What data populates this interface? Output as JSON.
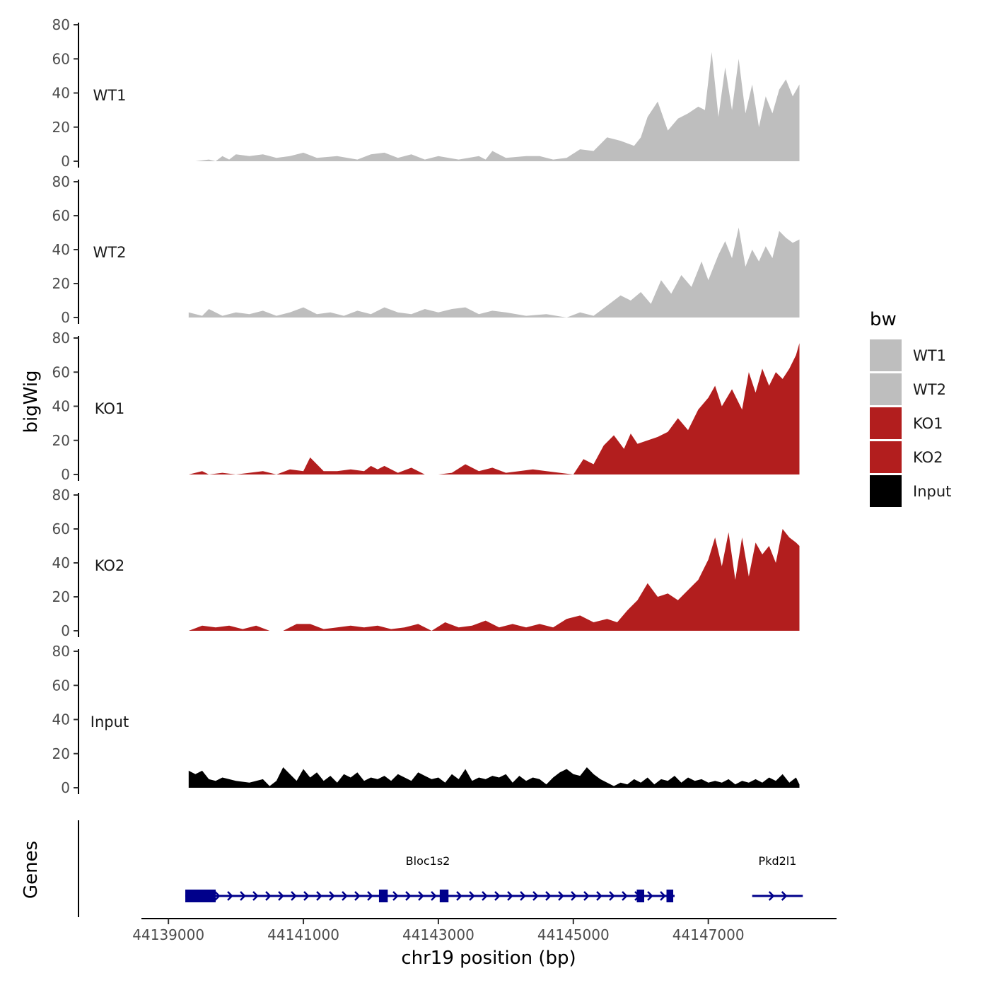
{
  "chart_data": {
    "type": "area",
    "y_axis_title": "bigWig",
    "x_axis_title": "chr19 position (bp)",
    "genes_axis_title": "Genes",
    "xlim": [
      44138600,
      44148900
    ],
    "x_ticks": [
      44139000,
      44141000,
      44143000,
      44145000,
      44147000
    ],
    "x_tick_labels": [
      "44139000",
      "44141000",
      "44143000",
      "44145000",
      "44147000"
    ],
    "ylim": [
      0,
      80
    ],
    "y_ticks": [
      0,
      20,
      40,
      60,
      80
    ],
    "y_tick_labels": [
      "0",
      "20",
      "40",
      "60",
      "80"
    ],
    "legend": {
      "title": "bw",
      "position": "right",
      "entries": [
        {
          "label": "WT1",
          "color": "#bebebe"
        },
        {
          "label": "WT2",
          "color": "#bebebe"
        },
        {
          "label": "KO1",
          "color": "#b21e1e"
        },
        {
          "label": "KO2",
          "color": "#b21e1e"
        },
        {
          "label": "Input",
          "color": "#000000"
        }
      ]
    },
    "series": [
      {
        "name": "WT1",
        "color": "#bebebe",
        "x": [
          44139400,
          44139600,
          44139700,
          44139800,
          44139900,
          44140000,
          44140200,
          44140400,
          44140600,
          44140800,
          44141000,
          44141200,
          44141500,
          44141800,
          44142000,
          44142200,
          44142400,
          44142600,
          44142800,
          44143000,
          44143300,
          44143600,
          44143700,
          44143800,
          44144000,
          44144300,
          44144500,
          44144700,
          44144900,
          44145100,
          44145300,
          44145500,
          44145700,
          44145900,
          44146000,
          44146100,
          44146250,
          44146400,
          44146550,
          44146700,
          44146850,
          44146950,
          44147050,
          44147150,
          44147250,
          44147350,
          44147450,
          44147550,
          44147650,
          44147750,
          44147850,
          44147950,
          44148050,
          44148150,
          44148250,
          44148350
        ],
        "values": [
          0,
          1,
          0,
          3,
          1,
          4,
          3,
          4,
          2,
          3,
          5,
          2,
          3,
          1,
          4,
          5,
          2,
          4,
          1,
          3,
          1,
          3,
          1,
          6,
          2,
          3,
          3,
          1,
          2,
          7,
          6,
          14,
          12,
          9,
          14,
          26,
          35,
          18,
          25,
          28,
          32,
          30,
          64,
          26,
          55,
          30,
          60,
          28,
          45,
          20,
          38,
          28,
          42,
          48,
          38,
          45
        ]
      },
      {
        "name": "WT2",
        "color": "#bebebe",
        "x": [
          44139300,
          44139500,
          44139600,
          44139800,
          44140000,
          44140200,
          44140400,
          44140600,
          44140800,
          44141000,
          44141200,
          44141400,
          44141600,
          44141800,
          44142000,
          44142200,
          44142400,
          44142600,
          44142800,
          44143000,
          44143200,
          44143400,
          44143600,
          44143800,
          44144000,
          44144300,
          44144600,
          44144900,
          44145100,
          44145300,
          44145500,
          44145700,
          44145850,
          44146000,
          44146150,
          44146300,
          44146450,
          44146600,
          44146750,
          44146900,
          44147000,
          44147150,
          44147250,
          44147350,
          44147450,
          44147550,
          44147650,
          44147750,
          44147850,
          44147950,
          44148050,
          44148150,
          44148250,
          44148350
        ],
        "values": [
          3,
          1,
          5,
          1,
          3,
          2,
          4,
          1,
          3,
          6,
          2,
          3,
          1,
          4,
          2,
          6,
          3,
          2,
          5,
          3,
          5,
          6,
          2,
          4,
          3,
          1,
          2,
          0,
          3,
          1,
          7,
          13,
          10,
          15,
          8,
          22,
          14,
          25,
          18,
          33,
          22,
          37,
          45,
          35,
          53,
          30,
          40,
          33,
          42,
          35,
          51,
          47,
          44,
          46
        ]
      },
      {
        "name": "KO1",
        "color": "#b21e1e",
        "x": [
          44139300,
          44139500,
          44139600,
          44139800,
          44140000,
          44140200,
          44140400,
          44140600,
          44140800,
          44141000,
          44141100,
          44141300,
          44141500,
          44141700,
          44141900,
          44142000,
          44142100,
          44142200,
          44142400,
          44142600,
          44142800,
          44143000,
          44143200,
          44143400,
          44143600,
          44143800,
          44144000,
          44144200,
          44144400,
          44144600,
          44144800,
          44145000,
          44145150,
          44145300,
          44145450,
          44145600,
          44145750,
          44145850,
          44145950,
          44146100,
          44146250,
          44146400,
          44146550,
          44146700,
          44146850,
          44147000,
          44147100,
          44147200,
          44147350,
          44147500,
          44147600,
          44147700,
          44147800,
          44147900,
          44148000,
          44148100,
          44148200,
          44148300,
          44148350
        ],
        "values": [
          0,
          2,
          0,
          1,
          0,
          1,
          2,
          0,
          3,
          2,
          10,
          2,
          2,
          3,
          2,
          5,
          3,
          5,
          1,
          4,
          0,
          0,
          1,
          6,
          2,
          4,
          1,
          2,
          3,
          2,
          1,
          0,
          9,
          6,
          17,
          23,
          15,
          24,
          18,
          20,
          22,
          25,
          33,
          26,
          38,
          45,
          52,
          40,
          50,
          38,
          60,
          48,
          62,
          52,
          60,
          56,
          62,
          70,
          77
        ]
      },
      {
        "name": "KO2",
        "color": "#b21e1e",
        "x": [
          44139300,
          44139500,
          44139700,
          44139900,
          44140100,
          44140300,
          44140500,
          44140700,
          44140900,
          44141100,
          44141300,
          44141500,
          44141700,
          44141900,
          44142100,
          44142300,
          44142500,
          44142700,
          44142900,
          44143100,
          44143300,
          44143500,
          44143700,
          44143900,
          44144100,
          44144300,
          44144500,
          44144700,
          44144900,
          44145100,
          44145300,
          44145500,
          44145650,
          44145800,
          44145950,
          44146100,
          44146250,
          44146400,
          44146550,
          44146700,
          44146850,
          44147000,
          44147100,
          44147200,
          44147300,
          44147400,
          44147500,
          44147600,
          44147700,
          44147800,
          44147900,
          44148000,
          44148100,
          44148200,
          44148300,
          44148350
        ],
        "values": [
          0,
          3,
          2,
          3,
          1,
          3,
          0,
          0,
          4,
          4,
          1,
          2,
          3,
          2,
          3,
          1,
          2,
          4,
          0,
          5,
          2,
          3,
          6,
          2,
          4,
          2,
          4,
          2,
          7,
          9,
          5,
          7,
          5,
          12,
          18,
          28,
          20,
          22,
          18,
          24,
          30,
          42,
          55,
          38,
          58,
          30,
          55,
          32,
          52,
          45,
          50,
          40,
          60,
          55,
          52,
          50
        ]
      },
      {
        "name": "Input",
        "color": "#000000",
        "x": [
          44139300,
          44139400,
          44139500,
          44139600,
          44139700,
          44139800,
          44139900,
          44140000,
          44140200,
          44140400,
          44140500,
          44140600,
          44140700,
          44140800,
          44140900,
          44141000,
          44141100,
          44141200,
          44141300,
          44141400,
          44141500,
          44141600,
          44141700,
          44141800,
          44141900,
          44142000,
          44142100,
          44142200,
          44142300,
          44142400,
          44142500,
          44142600,
          44142700,
          44142800,
          44142900,
          44143000,
          44143100,
          44143200,
          44143300,
          44143400,
          44143500,
          44143600,
          44143700,
          44143800,
          44143900,
          44144000,
          44144100,
          44144200,
          44144300,
          44144400,
          44144500,
          44144600,
          44144700,
          44144800,
          44144900,
          44145000,
          44145100,
          44145200,
          44145300,
          44145400,
          44145500,
          44145600,
          44145700,
          44145800,
          44145900,
          44146000,
          44146100,
          44146200,
          44146300,
          44146400,
          44146500,
          44146600,
          44146700,
          44146800,
          44146900,
          44147000,
          44147100,
          44147200,
          44147300,
          44147400,
          44147500,
          44147600,
          44147700,
          44147800,
          44147900,
          44148000,
          44148100,
          44148200,
          44148300,
          44148350
        ],
        "values": [
          10,
          8,
          10,
          5,
          4,
          6,
          5,
          4,
          3,
          5,
          1,
          4,
          12,
          8,
          4,
          11,
          6,
          9,
          4,
          7,
          3,
          8,
          6,
          9,
          4,
          6,
          5,
          7,
          4,
          8,
          6,
          4,
          9,
          7,
          5,
          6,
          3,
          8,
          5,
          11,
          4,
          6,
          5,
          7,
          6,
          8,
          3,
          7,
          4,
          6,
          5,
          2,
          6,
          9,
          11,
          8,
          7,
          12,
          8,
          5,
          3,
          1,
          3,
          2,
          5,
          3,
          6,
          2,
          5,
          4,
          7,
          3,
          6,
          4,
          5,
          3,
          4,
          3,
          5,
          2,
          4,
          3,
          5,
          3,
          6,
          4,
          8,
          3,
          6,
          2
        ]
      }
    ],
    "genes": [
      {
        "name": "Bloc1s2",
        "strand": "-",
        "start": 44139250,
        "end": 44146500,
        "exons": [
          [
            44139250,
            44139700
          ],
          [
            44142120,
            44142250
          ],
          [
            44143020,
            44143150
          ],
          [
            44145940,
            44146050
          ],
          [
            44146380,
            44146480
          ]
        ]
      },
      {
        "name": "Pkd2l1",
        "strand": "-",
        "start": 44147650,
        "end": 44148400,
        "exons": []
      }
    ]
  }
}
